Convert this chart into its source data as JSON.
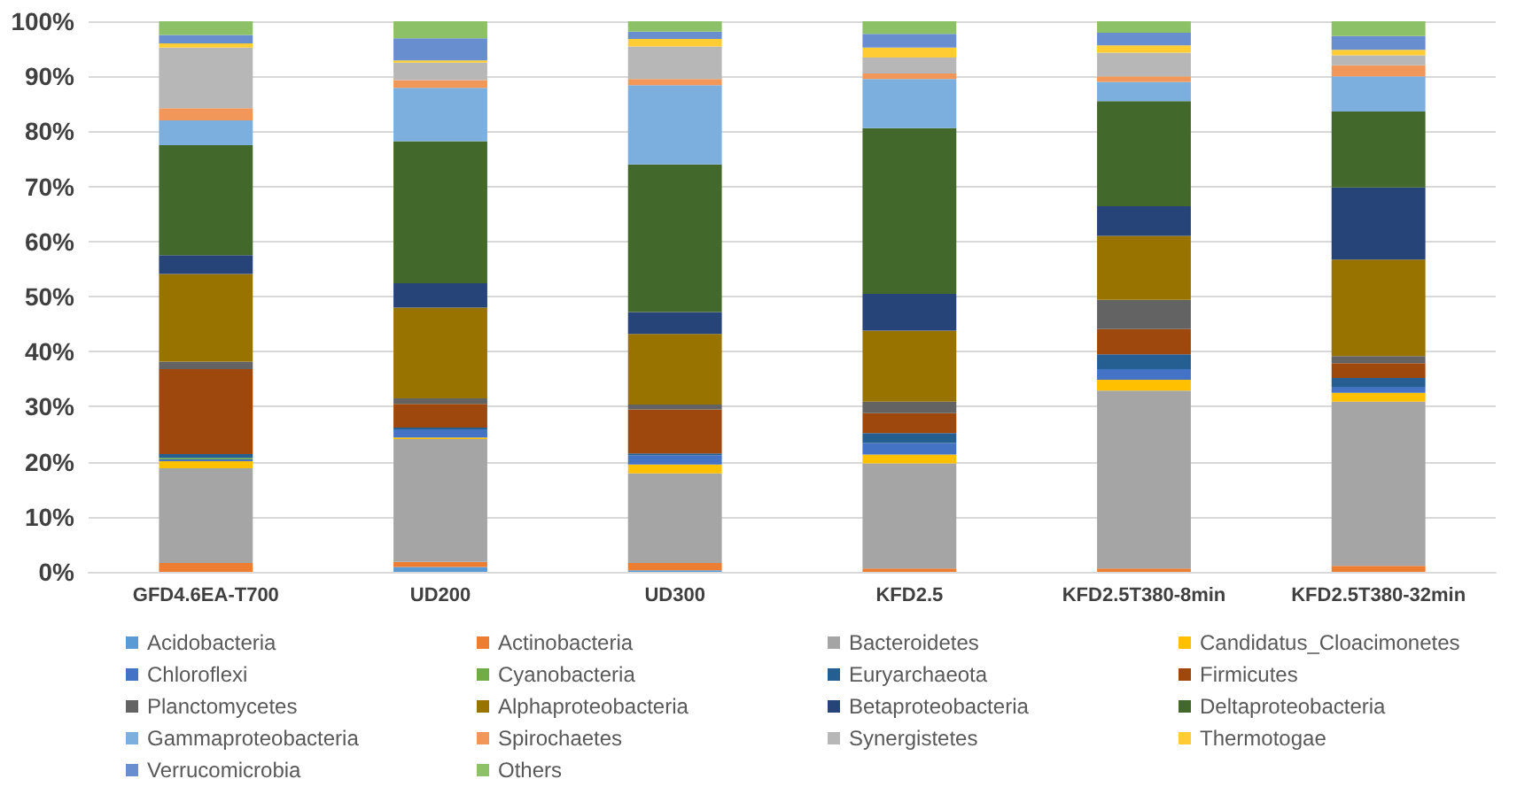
{
  "chart_data": {
    "type": "bar",
    "stacked": true,
    "grid": "y",
    "legend": "bottom",
    "categories": [
      "GFD4.6EA-T700",
      "UD200",
      "UD300",
      "KFD2.5",
      "KFD2.5T380-8min",
      "KFD2.5T380-32min"
    ],
    "ylim": [
      0,
      100
    ],
    "yticks": [
      {
        "value": 0,
        "label": "0%"
      },
      {
        "value": 10,
        "label": "10%"
      },
      {
        "value": 20,
        "label": "20%"
      },
      {
        "value": 30,
        "label": "30%"
      },
      {
        "value": 40,
        "label": "40%"
      },
      {
        "value": 50,
        "label": "50%"
      },
      {
        "value": 60,
        "label": "60%"
      },
      {
        "value": 70,
        "label": "70%"
      },
      {
        "value": 80,
        "label": "80%"
      },
      {
        "value": 90,
        "label": "90%"
      },
      {
        "value": 100,
        "label": "100%"
      }
    ],
    "series": [
      {
        "name": "Acidobacteria",
        "color": "#5b9bd5",
        "values": [
          0,
          0.9,
          0.3,
          0,
          0,
          0
        ]
      },
      {
        "name": "Actinobacteria",
        "color": "#ed7d31",
        "values": [
          1.6,
          0.9,
          1.3,
          0.6,
          0.6,
          1.1
        ]
      },
      {
        "name": "Bacteroidetes",
        "color": "#a5a5a5",
        "values": [
          17.2,
          22.3,
          16.3,
          19.1,
          32.3,
          29.8
        ]
      },
      {
        "name": "Candidatus_Cloacimonetes",
        "color": "#ffc000",
        "values": [
          1.3,
          0.3,
          1.6,
          1.6,
          2.0,
          1.6
        ]
      },
      {
        "name": "Chloroflexi",
        "color": "#4472c4",
        "values": [
          0.3,
          1.5,
          1.7,
          2.1,
          1.9,
          1.1
        ]
      },
      {
        "name": "Cyanobacteria",
        "color": "#70ad47",
        "values": [
          0.3,
          0,
          0,
          0,
          0,
          0
        ]
      },
      {
        "name": "Euryarchaeota",
        "color": "#255e91",
        "values": [
          0.7,
          0.3,
          0.3,
          1.8,
          2.7,
          1.6
        ]
      },
      {
        "name": "Firmicutes",
        "color": "#9e480e",
        "values": [
          15.4,
          4.3,
          8.0,
          3.6,
          4.6,
          2.7
        ]
      },
      {
        "name": "Planctomycetes",
        "color": "#636363",
        "values": [
          1.4,
          1.0,
          0.9,
          2.1,
          5.3,
          1.3
        ]
      },
      {
        "name": "Alphaproteobacteria",
        "color": "#997300",
        "values": [
          15.9,
          16.5,
          12.8,
          12.9,
          11.6,
          17.5
        ]
      },
      {
        "name": "Betaproteobacteria",
        "color": "#264478",
        "values": [
          3.4,
          4.4,
          4.0,
          6.7,
          5.4,
          13.1
        ]
      },
      {
        "name": "Deltaproteobacteria",
        "color": "#43682b",
        "values": [
          20.0,
          25.8,
          26.8,
          30.1,
          19.1,
          13.8
        ]
      },
      {
        "name": "Gammaproteobacteria",
        "color": "#7cafdd",
        "values": [
          4.5,
          9.7,
          14.4,
          8.9,
          3.5,
          6.4
        ]
      },
      {
        "name": "Spirochaetes",
        "color": "#f1975a",
        "values": [
          2.2,
          1.4,
          1.1,
          1.0,
          1.0,
          2.0
        ]
      },
      {
        "name": "Synergistetes",
        "color": "#b7b7b7",
        "values": [
          11.0,
          3.2,
          5.9,
          2.9,
          4.3,
          1.8
        ]
      },
      {
        "name": "Thermotogae",
        "color": "#ffcd33",
        "values": [
          0.8,
          0.4,
          1.4,
          1.8,
          1.3,
          1.0
        ]
      },
      {
        "name": "Verrucomicrobia",
        "color": "#698ed0",
        "values": [
          1.5,
          4.0,
          1.3,
          2.5,
          2.3,
          2.5
        ]
      },
      {
        "name": "Others",
        "color": "#8cc168",
        "values": [
          2.5,
          3.1,
          1.9,
          2.3,
          2.1,
          2.7
        ]
      }
    ]
  }
}
